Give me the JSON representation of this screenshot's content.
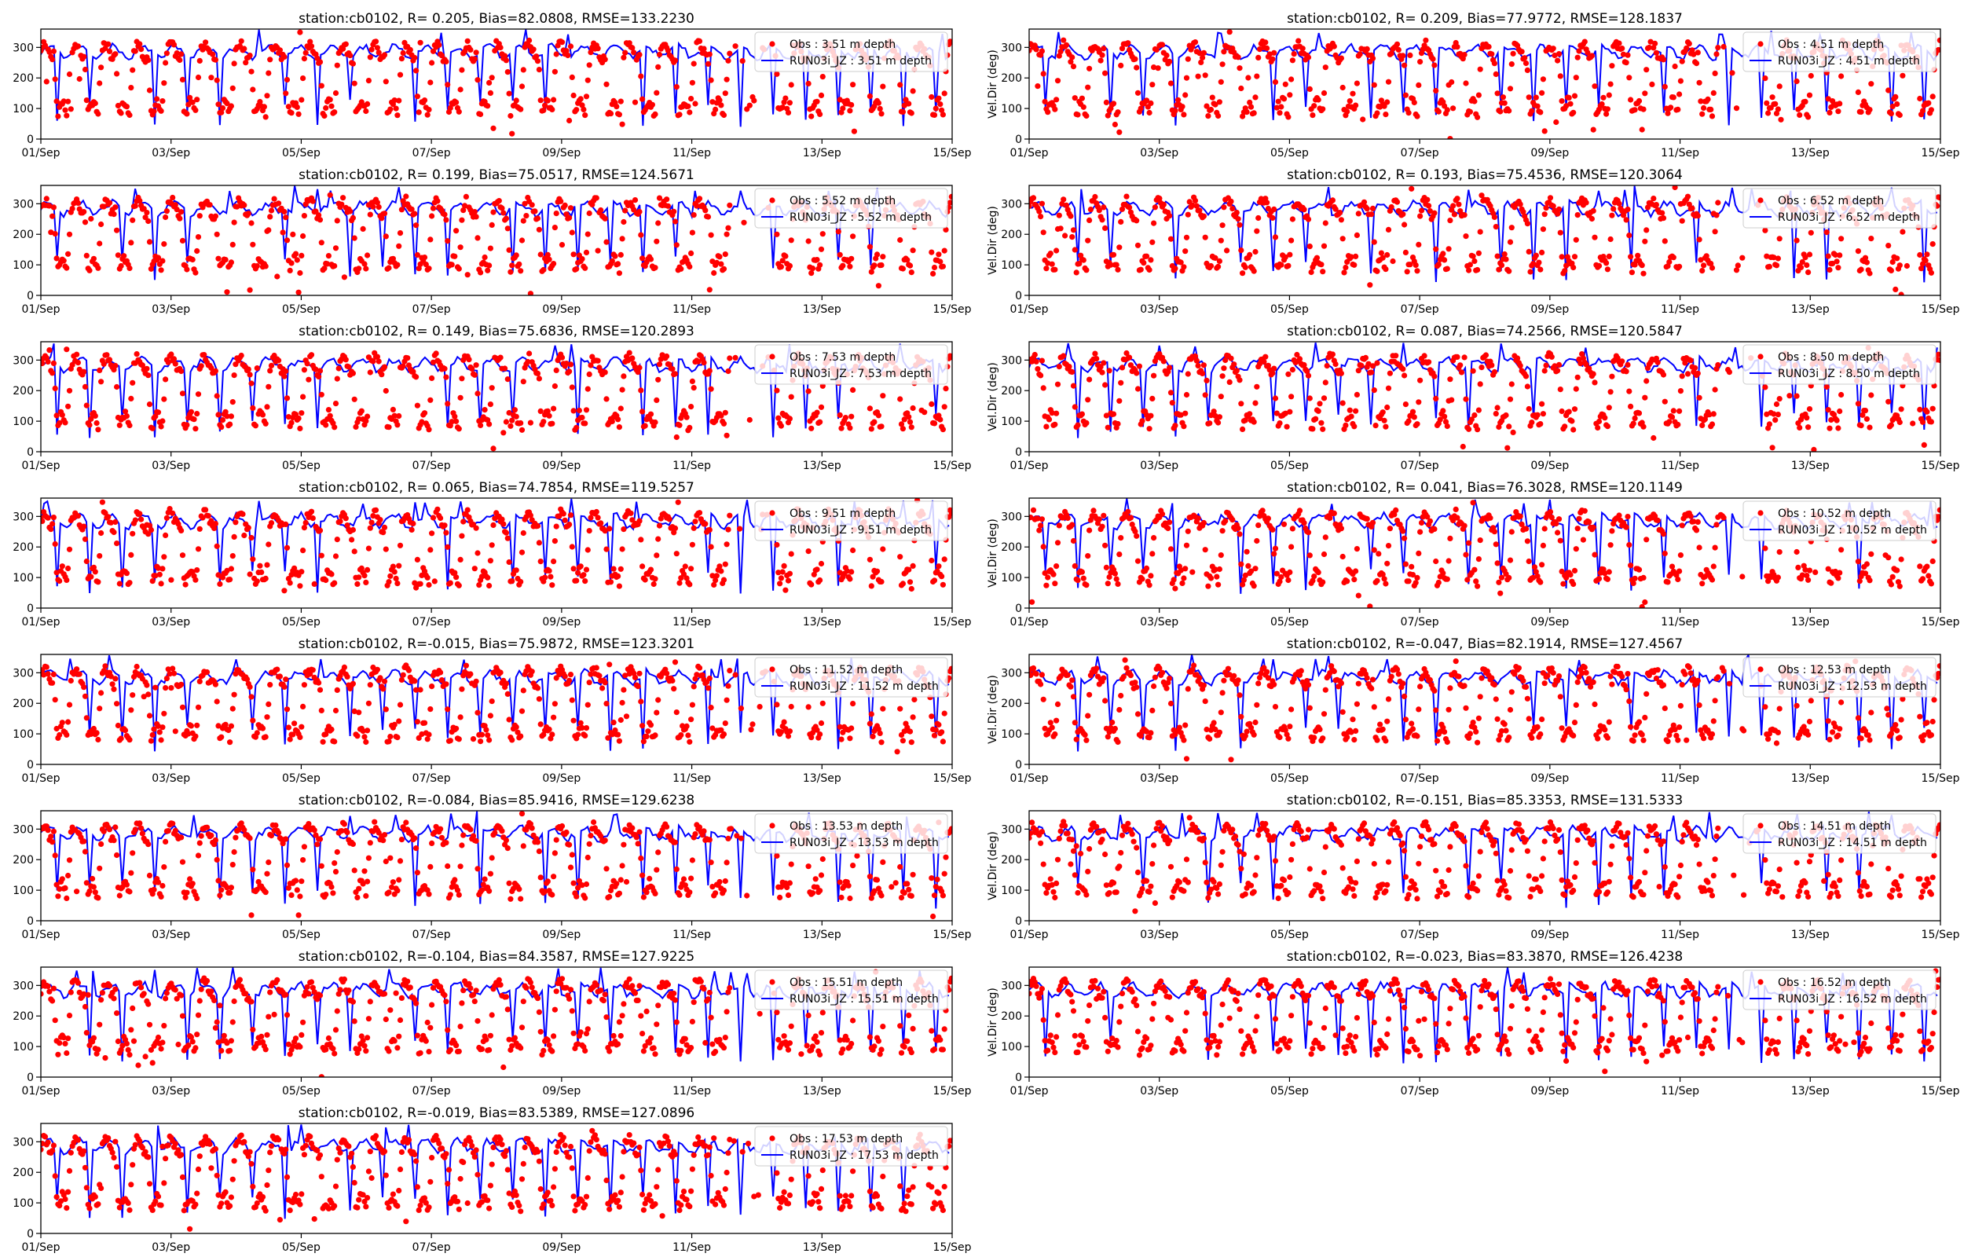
{
  "colors": {
    "obs": "#ff0000",
    "model": "#0000ff",
    "axes": "#000000",
    "legend_border": "#cccccc"
  },
  "shared": {
    "x_tick_labels": [
      "01/Sep",
      "03/Sep",
      "05/Sep",
      "07/Sep",
      "09/Sep",
      "11/Sep",
      "13/Sep",
      "15/Sep"
    ],
    "y_tick_labels": [
      "0",
      "100",
      "200",
      "300"
    ],
    "ylabel": "Vel.Dir (deg)",
    "obs_label_prefix": "Obs",
    "model_label_prefix": "RUN03i_JZ"
  },
  "chart_data": [
    {
      "type": "line",
      "title": "station:cb0102, R= 0.205, Bias=82.0808, RMSE=133.2230",
      "ylabel": "",
      "ylim": [
        0,
        360
      ],
      "xlim": [
        "2023-09-01",
        "2023-09-15"
      ],
      "legend": [
        "Obs : 3.51 m depth",
        "RUN03i_JZ : 3.51 m depth"
      ],
      "series": [
        {
          "name": "Obs : 3.51 m depth",
          "style": "red dots",
          "values": "dense time series, bimodal ~50-130 and ~270-340 deg"
        },
        {
          "name": "RUN03i_JZ : 3.51 m depth",
          "style": "blue line",
          "values": "mostly ~270-320 deg with frequent dips to ~60-100"
        }
      ]
    },
    {
      "type": "line",
      "title": "station:cb0102, R= 0.209, Bias=77.9772, RMSE=128.1837",
      "ylabel": "Vel.Dir (deg)",
      "ylim": [
        0,
        360
      ],
      "xlim": [
        "2023-09-01",
        "2023-09-15"
      ],
      "legend": [
        "Obs : 4.51 m depth",
        "RUN03i_JZ : 4.51 m depth"
      ],
      "series": [
        {
          "name": "Obs : 4.51 m depth",
          "style": "red dots"
        },
        {
          "name": "RUN03i_JZ : 4.51 m depth",
          "style": "blue line"
        }
      ]
    },
    {
      "type": "line",
      "title": "station:cb0102, R= 0.199, Bias=75.0517, RMSE=124.5671",
      "ylabel": "",
      "ylim": [
        0,
        360
      ],
      "xlim": [
        "2023-09-01",
        "2023-09-15"
      ],
      "legend": [
        "Obs : 5.52 m depth",
        "RUN03i_JZ : 5.52 m depth"
      ],
      "series": [
        {
          "name": "Obs : 5.52 m depth",
          "style": "red dots"
        },
        {
          "name": "RUN03i_JZ : 5.52 m depth",
          "style": "blue line"
        }
      ]
    },
    {
      "type": "line",
      "title": "station:cb0102, R= 0.193, Bias=75.4536, RMSE=120.3064",
      "ylabel": "Vel.Dir (deg)",
      "ylim": [
        0,
        360
      ],
      "xlim": [
        "2023-09-01",
        "2023-09-15"
      ],
      "legend": [
        "Obs : 6.52 m depth",
        "RUN03i_JZ : 6.52 m depth"
      ],
      "series": [
        {
          "name": "Obs : 6.52 m depth",
          "style": "red dots"
        },
        {
          "name": "RUN03i_JZ : 6.52 m depth",
          "style": "blue line"
        }
      ]
    },
    {
      "type": "line",
      "title": "station:cb0102, R= 0.149, Bias=75.6836, RMSE=120.2893",
      "ylabel": "",
      "ylim": [
        0,
        360
      ],
      "xlim": [
        "2023-09-01",
        "2023-09-15"
      ],
      "legend": [
        "Obs : 7.53 m depth",
        "RUN03i_JZ : 7.53 m depth"
      ],
      "series": [
        {
          "name": "Obs : 7.53 m depth",
          "style": "red dots"
        },
        {
          "name": "RUN03i_JZ : 7.53 m depth",
          "style": "blue line"
        }
      ]
    },
    {
      "type": "line",
      "title": "station:cb0102, R= 0.087, Bias=74.2566, RMSE=120.5847",
      "ylabel": "Vel.Dir (deg)",
      "ylim": [
        0,
        360
      ],
      "xlim": [
        "2023-09-01",
        "2023-09-15"
      ],
      "legend": [
        "Obs : 8.50 m depth",
        "RUN03i_JZ : 8.50 m depth"
      ],
      "series": [
        {
          "name": "Obs : 8.50 m depth",
          "style": "red dots"
        },
        {
          "name": "RUN03i_JZ : 8.50 m depth",
          "style": "blue line"
        }
      ]
    },
    {
      "type": "line",
      "title": "station:cb0102, R= 0.065, Bias=74.7854, RMSE=119.5257",
      "ylabel": "",
      "ylim": [
        0,
        360
      ],
      "xlim": [
        "2023-09-01",
        "2023-09-15"
      ],
      "legend": [
        "Obs : 9.51 m depth",
        "RUN03i_JZ : 9.51 m depth"
      ],
      "series": [
        {
          "name": "Obs : 9.51 m depth",
          "style": "red dots"
        },
        {
          "name": "RUN03i_JZ : 9.51 m depth",
          "style": "blue line"
        }
      ]
    },
    {
      "type": "line",
      "title": "station:cb0102, R= 0.041, Bias=76.3028, RMSE=120.1149",
      "ylabel": "Vel.Dir (deg)",
      "ylim": [
        0,
        360
      ],
      "xlim": [
        "2023-09-01",
        "2023-09-15"
      ],
      "legend": [
        "Obs : 10.52 m depth",
        "RUN03i_JZ : 10.52 m depth"
      ],
      "series": [
        {
          "name": "Obs : 10.52 m depth",
          "style": "red dots"
        },
        {
          "name": "RUN03i_JZ : 10.52 m depth",
          "style": "blue line"
        }
      ]
    },
    {
      "type": "line",
      "title": "station:cb0102, R=-0.015, Bias=75.9872, RMSE=123.3201",
      "ylabel": "",
      "ylim": [
        0,
        360
      ],
      "xlim": [
        "2023-09-01",
        "2023-09-15"
      ],
      "legend": [
        "Obs : 11.52 m depth",
        "RUN03i_JZ : 11.52 m depth"
      ],
      "series": [
        {
          "name": "Obs : 11.52 m depth",
          "style": "red dots"
        },
        {
          "name": "RUN03i_JZ : 11.52 m depth",
          "style": "blue line"
        }
      ]
    },
    {
      "type": "line",
      "title": "station:cb0102, R=-0.047, Bias=82.1914, RMSE=127.4567",
      "ylabel": "Vel.Dir (deg)",
      "ylim": [
        0,
        360
      ],
      "xlim": [
        "2023-09-01",
        "2023-09-15"
      ],
      "legend": [
        "Obs : 12.53 m depth",
        "RUN03i_JZ : 12.53 m depth"
      ],
      "series": [
        {
          "name": "Obs : 12.53 m depth",
          "style": "red dots"
        },
        {
          "name": "RUN03i_JZ : 12.53 m depth",
          "style": "blue line"
        }
      ]
    },
    {
      "type": "line",
      "title": "station:cb0102, R=-0.084, Bias=85.9416, RMSE=129.6238",
      "ylabel": "",
      "ylim": [
        0,
        360
      ],
      "xlim": [
        "2023-09-01",
        "2023-09-15"
      ],
      "legend": [
        "Obs : 13.53 m depth",
        "RUN03i_JZ : 13.53 m depth"
      ],
      "series": [
        {
          "name": "Obs : 13.53 m depth",
          "style": "red dots"
        },
        {
          "name": "RUN03i_JZ : 13.53 m depth",
          "style": "blue line"
        }
      ]
    },
    {
      "type": "line",
      "title": "station:cb0102, R=-0.151, Bias=85.3353, RMSE=131.5333",
      "ylabel": "Vel.Dir (deg)",
      "ylim": [
        0,
        360
      ],
      "xlim": [
        "2023-09-01",
        "2023-09-15"
      ],
      "legend": [
        "Obs : 14.51 m depth",
        "RUN03i_JZ : 14.51 m depth"
      ],
      "series": [
        {
          "name": "Obs : 14.51 m depth",
          "style": "red dots"
        },
        {
          "name": "RUN03i_JZ : 14.51 m depth",
          "style": "blue line"
        }
      ]
    },
    {
      "type": "line",
      "title": "station:cb0102, R=-0.104, Bias=84.3587, RMSE=127.9225",
      "ylabel": "",
      "ylim": [
        0,
        360
      ],
      "xlim": [
        "2023-09-01",
        "2023-09-15"
      ],
      "legend": [
        "Obs : 15.51 m depth",
        "RUN03i_JZ : 15.51 m depth"
      ],
      "series": [
        {
          "name": "Obs : 15.51 m depth",
          "style": "red dots"
        },
        {
          "name": "RUN03i_JZ : 15.51 m depth",
          "style": "blue line"
        }
      ]
    },
    {
      "type": "line",
      "title": "station:cb0102, R=-0.023, Bias=83.3870, RMSE=126.4238",
      "ylabel": "Vel.Dir (deg)",
      "ylim": [
        0,
        360
      ],
      "xlim": [
        "2023-09-01",
        "2023-09-15"
      ],
      "legend": [
        "Obs : 16.52 m depth",
        "RUN03i_JZ : 16.52 m depth"
      ],
      "series": [
        {
          "name": "Obs : 16.52 m depth",
          "style": "red dots"
        },
        {
          "name": "RUN03i_JZ : 16.52 m depth",
          "style": "blue line"
        }
      ]
    },
    {
      "type": "line",
      "title": "station:cb0102, R=-0.019, Bias=83.5389, RMSE=127.0896",
      "ylabel": "",
      "ylim": [
        0,
        360
      ],
      "xlim": [
        "2023-09-01",
        "2023-09-15"
      ],
      "legend": [
        "Obs : 17.53 m depth",
        "RUN03i_JZ : 17.53 m depth"
      ],
      "series": [
        {
          "name": "Obs : 17.53 m depth",
          "style": "red dots"
        },
        {
          "name": "RUN03i_JZ : 17.53 m depth",
          "style": "blue line"
        }
      ]
    }
  ]
}
